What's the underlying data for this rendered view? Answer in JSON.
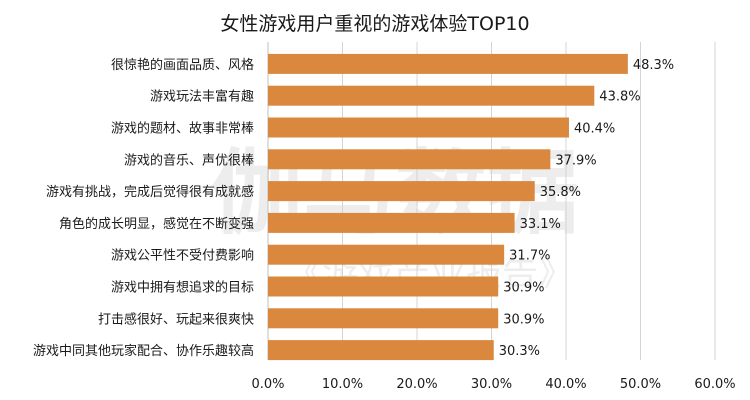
{
  "chart_data": {
    "type": "bar",
    "orientation": "horizontal",
    "title": "女性游戏用户重视的游戏体验TOP10",
    "categories": [
      "很惊艳的画面品质、风格",
      "游戏玩法丰富有趣",
      "游戏的题材、故事非常棒",
      "游戏的音乐、声优很棒",
      "游戏有挑战，完成后觉得很有成就感",
      "角色的成长明显，感觉在不断变强",
      "游戏公平性不受付费影响",
      "游戏中拥有想追求的目标",
      "打击感很好、玩起来很爽快",
      "游戏中同其他玩家配合、协作乐趣较高"
    ],
    "values": [
      48.3,
      43.8,
      40.4,
      37.9,
      35.8,
      33.1,
      31.7,
      30.9,
      30.9,
      30.3
    ],
    "value_labels": [
      "48.3%",
      "43.8%",
      "40.4%",
      "37.9%",
      "35.8%",
      "33.1%",
      "31.7%",
      "30.9%",
      "30.9%",
      "30.3%"
    ],
    "xlim": [
      0,
      60
    ],
    "x_ticks": [
      0,
      10,
      20,
      30,
      40,
      50,
      60
    ],
    "x_tick_labels": [
      "0.0%",
      "10.0%",
      "20.0%",
      "30.0%",
      "40.0%",
      "50.0%",
      "60.0%"
    ],
    "grid": "vertical",
    "legend": "none",
    "bar_color": "#D9883E",
    "watermark": {
      "line1": "伽马数据",
      "line2": "《游戏产业报告》"
    }
  }
}
